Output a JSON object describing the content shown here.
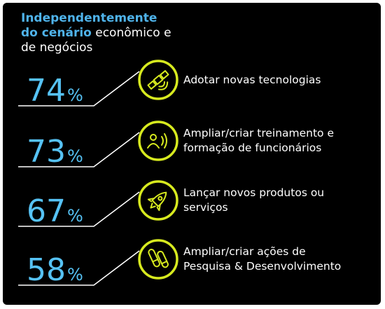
{
  "header": {
    "line1": "Independentemente",
    "line2_highlight": "do cenário",
    "line2_rest": " econômico e",
    "line3": "de negócios"
  },
  "colors": {
    "background": "#000000",
    "number": "#56c2f4",
    "icon_ring": "#d7ea1f",
    "heading_highlight": "#4fb3ea",
    "text": "#ffffff"
  },
  "chart_data": {
    "type": "bar",
    "unit": "%",
    "categories": [
      "Adotar novas tecnologias",
      "Ampliar/criar treinamento e formação de funcionários",
      "Lançar novos produtos ou serviços",
      "Ampliar/criar ações de Pesquisa & Desenvolvimento"
    ],
    "values": [
      74,
      73,
      67,
      58
    ],
    "labels": [
      [
        "Adotar novas tecnologias"
      ],
      [
        "Ampliar/criar treinamento e",
        "formação de funcionários"
      ],
      [
        "Lançar novos produtos ou",
        "serviços"
      ],
      [
        "Ampliar/criar ações de",
        "Pesquisa & Desenvolvimento"
      ]
    ],
    "icons": [
      "satellite-icon",
      "speaker-person-icon",
      "rocket-icon",
      "test-tubes-icon"
    ]
  }
}
